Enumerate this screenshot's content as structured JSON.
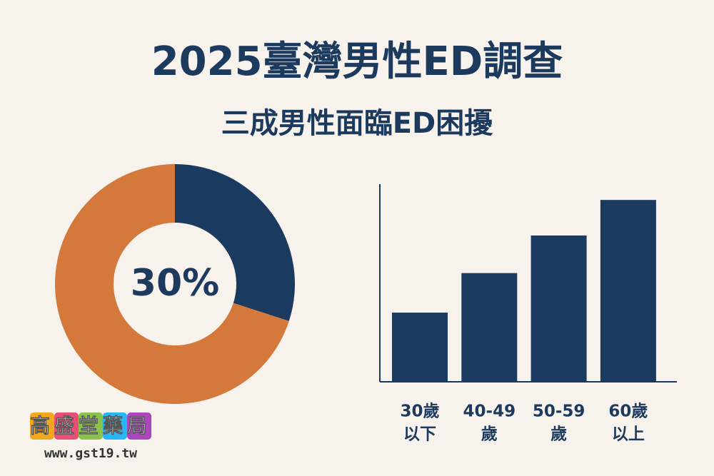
{
  "title": "2025臺灣男性ED調查",
  "subtitle": "三成男性面臨ED困擾",
  "chart_data": [
    {
      "type": "pie",
      "values": [
        30,
        70
      ],
      "value_labels": [
        "30%",
        null
      ],
      "colors": [
        "#1b3a5f",
        "#d4783b"
      ],
      "donut": true
    },
    {
      "type": "bar",
      "categories": [
        [
          "30歲",
          "以下"
        ],
        [
          "40-49",
          "歲"
        ],
        [
          "50-59",
          "歲"
        ],
        [
          "60歲",
          "以上"
        ]
      ],
      "values": [
        35,
        55,
        74,
        92
      ],
      "color": "#1b3a5f",
      "ylim": [
        0,
        100
      ]
    }
  ],
  "logo": {
    "name": "高盛堂藥局",
    "url": "www.gst19.tw"
  }
}
